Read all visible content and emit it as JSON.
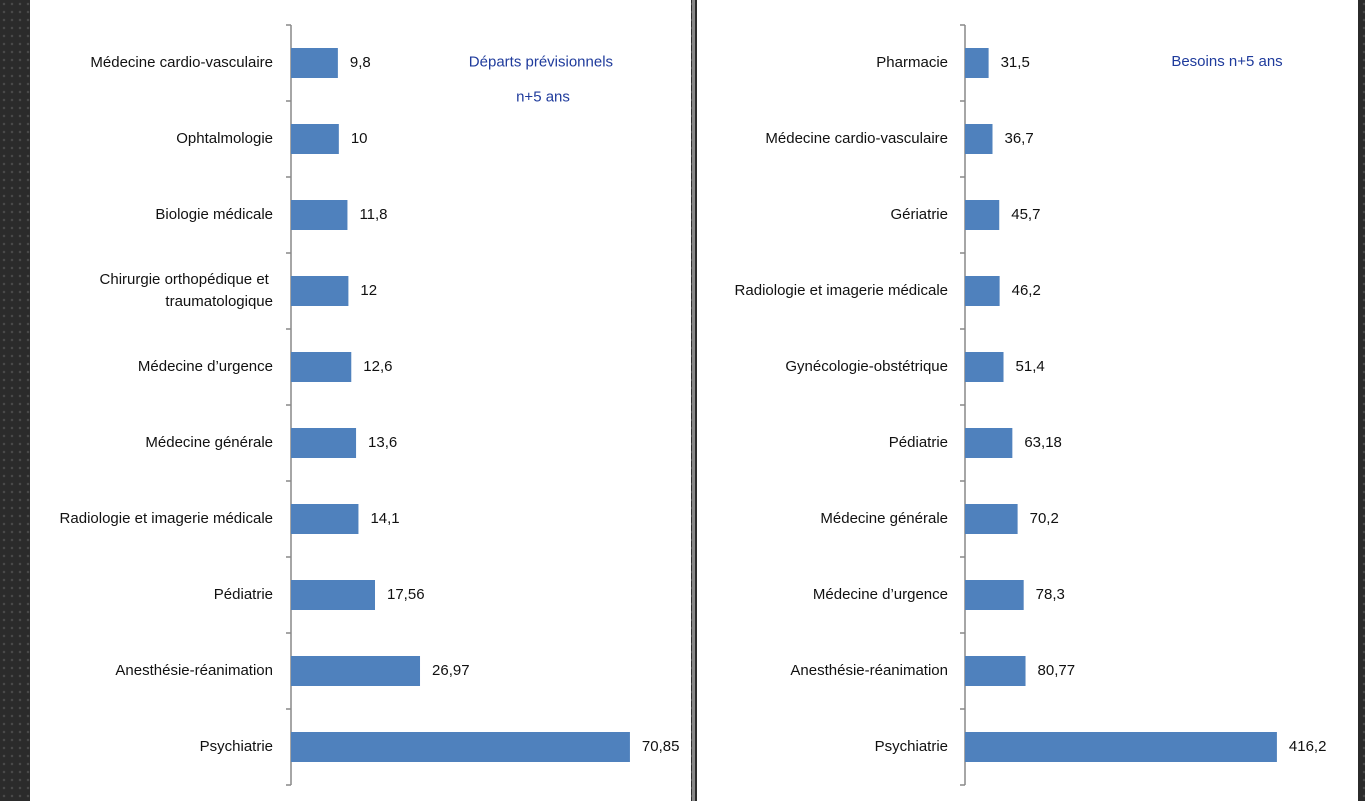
{
  "chart_data": [
    {
      "type": "barh",
      "title": "Départs prévisionnels n+5 ans",
      "categories": [
        "Médecine cardio-vasculaire",
        "Ophtalmologie",
        "Biologie médicale",
        "Chirurgie orthopédique et traumatologique",
        "Médecine d’urgence",
        "Médecine générale",
        "Radiologie et imagerie médicale",
        "Pédiatrie",
        "Anesthésie-réanimation",
        "Psychiatrie"
      ],
      "values": [
        9.8,
        10,
        11.8,
        12,
        12.6,
        13.6,
        14.1,
        17.56,
        26.97,
        70.85
      ],
      "value_labels": [
        "9,8",
        "10",
        "11,8",
        "12",
        "12,6",
        "13,6",
        "14,1",
        "17,56",
        "26,97",
        "70,85"
      ],
      "color": "#4f81bd",
      "xlim": [
        0,
        74
      ]
    },
    {
      "type": "barh",
      "title": "Besoins n+5 ans",
      "categories": [
        "Pharmacie",
        "Médecine cardio-vasculaire",
        "Gériatrie",
        "Radiologie et imagerie médicale",
        "Gynécologie-obstétrique",
        "Pédiatrie",
        "Médecine générale",
        "Médecine d’urgence",
        "Anesthésie-réanimation",
        "Psychiatrie"
      ],
      "values": [
        31.5,
        36.7,
        45.7,
        46.2,
        51.4,
        63.18,
        70.2,
        78.3,
        80.77,
        416.2
      ],
      "value_labels": [
        "31,5",
        "36,7",
        "45,7",
        "46,2",
        "51,4",
        "63,18",
        "70,2",
        "78,3",
        "80,77",
        "416,2"
      ],
      "color": "#4f81bd",
      "xlim": [
        0,
        435
      ]
    }
  ]
}
